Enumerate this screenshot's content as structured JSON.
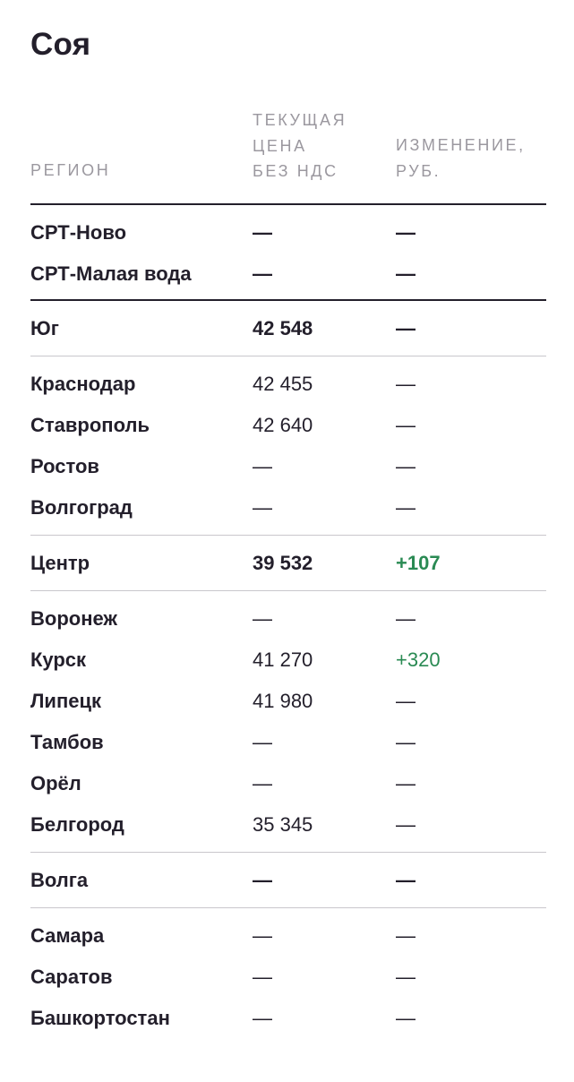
{
  "title": "Соя",
  "headers": {
    "region": "РЕГИОН",
    "price_line1": "ТЕКУЩАЯ",
    "price_line2": "ЦЕНА",
    "price_line3": "БЕЗ НДС",
    "change_line1": "ИЗМЕНЕНИЕ,",
    "change_line2": "РУБ."
  },
  "top_rows": [
    {
      "region": "СРТ-Ново",
      "price": "—",
      "change": "—"
    },
    {
      "region": "СРТ-Малая вода",
      "price": "—",
      "change": "—"
    }
  ],
  "groups": [
    {
      "name": "Юг",
      "price": "42 548",
      "change": "—",
      "rows": [
        {
          "region": "Краснодар",
          "price": "42 455",
          "change": "—"
        },
        {
          "region": "Ставрополь",
          "price": "42 640",
          "change": "—"
        },
        {
          "region": "Ростов",
          "price": "—",
          "change": "—"
        },
        {
          "region": "Волгоград",
          "price": "—",
          "change": "—"
        }
      ]
    },
    {
      "name": "Центр",
      "price": "39 532",
      "change": "+107",
      "rows": [
        {
          "region": "Воронеж",
          "price": "—",
          "change": "—"
        },
        {
          "region": "Курск",
          "price": "41 270",
          "change": "+320"
        },
        {
          "region": "Липецк",
          "price": "41 980",
          "change": "—"
        },
        {
          "region": "Тамбов",
          "price": "—",
          "change": "—"
        },
        {
          "region": "Орёл",
          "price": "—",
          "change": "—"
        },
        {
          "region": "Белгород",
          "price": "35 345",
          "change": "—"
        }
      ]
    },
    {
      "name": "Волга",
      "price": "—",
      "change": "—",
      "rows": [
        {
          "region": "Самара",
          "price": "—",
          "change": "—"
        },
        {
          "region": "Саратов",
          "price": "—",
          "change": "—"
        },
        {
          "region": "Башкортостан",
          "price": "—",
          "change": "—"
        }
      ]
    }
  ],
  "colors": {
    "text": "#231f2b",
    "muted": "#9b989f",
    "positive": "#2a8a53",
    "divider": "#c9c7cc"
  }
}
